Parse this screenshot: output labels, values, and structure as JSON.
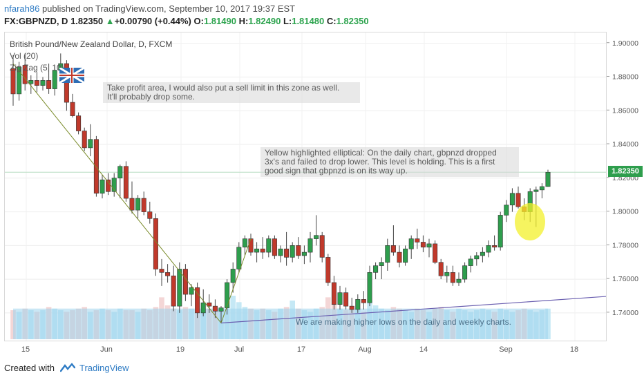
{
  "header": {
    "user": "nfarah86",
    "published": " published on TradingView.com, September 10, 2017 19:37 EST",
    "symbol": "FX:GBPNZD, D",
    "last": "1.82350",
    "change_arrow": "▲",
    "change": "+0.00790 (+0.44%)",
    "o_label": "O:",
    "o_val": "1.81490",
    "h_label": "H:",
    "h_val": "1.82490",
    "l_label": "L:",
    "l_val": "1.81480",
    "c_label": "C:",
    "c_val": "1.82350"
  },
  "legend": {
    "title": "British Pound/New Zealand Dollar, D, FXCM",
    "vol": "Vol (20)",
    "zigzag": "Zig Zag (5, 10)"
  },
  "notes": {
    "take_profit": "Take profit area, I would also put a sell limit in this zone as well.\nIt'll probably drop some.",
    "yellow": "Yellow highlighted elliptical: On the daily chart, gbpnzd dropped\n3x's and failed to drop lower.  This level is holding. This is a first\ngood sign that gbpnzd is on its way up.",
    "higher_lows": "We are making higher lows on the daily and weekly charts."
  },
  "price_label": "1.82350",
  "footer": {
    "created_with": "Created with",
    "brand": "TradingView"
  },
  "colors": {
    "up": "#2e9e4d",
    "down": "#c0392b",
    "zigzag": "#7a8b2a",
    "trend": "#6a5fb0",
    "volume": "#9fd3ec",
    "highlight": "#f3f02b"
  },
  "chart_data": {
    "type": "candlestick",
    "title": "British Pound/New Zealand Dollar, D, FXCM",
    "y_ticks": [
      "1.90000",
      "1.88000",
      "1.86000",
      "1.84000",
      "1.82000",
      "1.80000",
      "1.78000",
      "1.76000",
      "1.74000"
    ],
    "ylim": [
      1.726,
      1.904
    ],
    "x_ticks": [
      "15",
      "Jun",
      "19",
      "Jul",
      "17",
      "Aug",
      "14",
      "Sep",
      "18"
    ],
    "grid": true,
    "candles": [
      {
        "o": 1.885,
        "h": 1.893,
        "l": 1.863,
        "c": 1.87
      },
      {
        "o": 1.87,
        "h": 1.889,
        "l": 1.866,
        "c": 1.886
      },
      {
        "o": 1.887,
        "h": 1.894,
        "l": 1.872,
        "c": 1.876
      },
      {
        "o": 1.876,
        "h": 1.881,
        "l": 1.87,
        "c": 1.878
      },
      {
        "o": 1.878,
        "h": 1.883,
        "l": 1.871,
        "c": 1.875
      },
      {
        "o": 1.875,
        "h": 1.88,
        "l": 1.872,
        "c": 1.878
      },
      {
        "o": 1.878,
        "h": 1.888,
        "l": 1.87,
        "c": 1.873
      },
      {
        "o": 1.873,
        "h": 1.887,
        "l": 1.869,
        "c": 1.884
      },
      {
        "o": 1.884,
        "h": 1.894,
        "l": 1.881,
        "c": 1.888
      },
      {
        "o": 1.888,
        "h": 1.89,
        "l": 1.86,
        "c": 1.865
      },
      {
        "o": 1.865,
        "h": 1.87,
        "l": 1.856,
        "c": 1.857
      },
      {
        "o": 1.857,
        "h": 1.859,
        "l": 1.846,
        "c": 1.848
      },
      {
        "o": 1.848,
        "h": 1.85,
        "l": 1.836,
        "c": 1.838
      },
      {
        "o": 1.838,
        "h": 1.852,
        "l": 1.833,
        "c": 1.843
      },
      {
        "o": 1.843,
        "h": 1.845,
        "l": 1.809,
        "c": 1.811
      },
      {
        "o": 1.811,
        "h": 1.822,
        "l": 1.808,
        "c": 1.819
      },
      {
        "o": 1.819,
        "h": 1.823,
        "l": 1.81,
        "c": 1.812
      },
      {
        "o": 1.812,
        "h": 1.823,
        "l": 1.809,
        "c": 1.82
      },
      {
        "o": 1.82,
        "h": 1.828,
        "l": 1.808,
        "c": 1.827
      },
      {
        "o": 1.827,
        "h": 1.83,
        "l": 1.806,
        "c": 1.808
      },
      {
        "o": 1.808,
        "h": 1.818,
        "l": 1.799,
        "c": 1.801
      },
      {
        "o": 1.801,
        "h": 1.81,
        "l": 1.796,
        "c": 1.808
      },
      {
        "o": 1.808,
        "h": 1.812,
        "l": 1.798,
        "c": 1.8
      },
      {
        "o": 1.8,
        "h": 1.806,
        "l": 1.793,
        "c": 1.796
      },
      {
        "o": 1.796,
        "h": 1.799,
        "l": 1.762,
        "c": 1.766
      },
      {
        "o": 1.766,
        "h": 1.772,
        "l": 1.756,
        "c": 1.764
      },
      {
        "o": 1.764,
        "h": 1.769,
        "l": 1.758,
        "c": 1.762
      },
      {
        "o": 1.762,
        "h": 1.768,
        "l": 1.741,
        "c": 1.744
      },
      {
        "o": 1.744,
        "h": 1.77,
        "l": 1.74,
        "c": 1.766
      },
      {
        "o": 1.766,
        "h": 1.769,
        "l": 1.747,
        "c": 1.751
      },
      {
        "o": 1.751,
        "h": 1.757,
        "l": 1.744,
        "c": 1.755
      },
      {
        "o": 1.755,
        "h": 1.758,
        "l": 1.737,
        "c": 1.74
      },
      {
        "o": 1.74,
        "h": 1.754,
        "l": 1.738,
        "c": 1.746
      },
      {
        "o": 1.746,
        "h": 1.751,
        "l": 1.74,
        "c": 1.744
      },
      {
        "o": 1.744,
        "h": 1.748,
        "l": 1.737,
        "c": 1.741
      },
      {
        "o": 1.741,
        "h": 1.744,
        "l": 1.734,
        "c": 1.743
      },
      {
        "o": 1.743,
        "h": 1.76,
        "l": 1.739,
        "c": 1.758
      },
      {
        "o": 1.758,
        "h": 1.77,
        "l": 1.752,
        "c": 1.766
      },
      {
        "o": 1.766,
        "h": 1.782,
        "l": 1.764,
        "c": 1.779
      },
      {
        "o": 1.779,
        "h": 1.786,
        "l": 1.774,
        "c": 1.784
      },
      {
        "o": 1.784,
        "h": 1.787,
        "l": 1.774,
        "c": 1.776
      },
      {
        "o": 1.776,
        "h": 1.782,
        "l": 1.77,
        "c": 1.778
      },
      {
        "o": 1.778,
        "h": 1.785,
        "l": 1.772,
        "c": 1.776
      },
      {
        "o": 1.776,
        "h": 1.786,
        "l": 1.773,
        "c": 1.784
      },
      {
        "o": 1.784,
        "h": 1.786,
        "l": 1.772,
        "c": 1.774
      },
      {
        "o": 1.774,
        "h": 1.78,
        "l": 1.77,
        "c": 1.778
      },
      {
        "o": 1.778,
        "h": 1.788,
        "l": 1.768,
        "c": 1.773
      },
      {
        "o": 1.773,
        "h": 1.782,
        "l": 1.77,
        "c": 1.78
      },
      {
        "o": 1.78,
        "h": 1.785,
        "l": 1.772,
        "c": 1.774
      },
      {
        "o": 1.774,
        "h": 1.78,
        "l": 1.769,
        "c": 1.776
      },
      {
        "o": 1.776,
        "h": 1.788,
        "l": 1.77,
        "c": 1.784
      },
      {
        "o": 1.784,
        "h": 1.798,
        "l": 1.78,
        "c": 1.786
      },
      {
        "o": 1.786,
        "h": 1.788,
        "l": 1.77,
        "c": 1.773
      },
      {
        "o": 1.773,
        "h": 1.775,
        "l": 1.756,
        "c": 1.758
      },
      {
        "o": 1.758,
        "h": 1.762,
        "l": 1.742,
        "c": 1.745
      },
      {
        "o": 1.745,
        "h": 1.756,
        "l": 1.742,
        "c": 1.752
      },
      {
        "o": 1.752,
        "h": 1.755,
        "l": 1.742,
        "c": 1.744
      },
      {
        "o": 1.744,
        "h": 1.749,
        "l": 1.74,
        "c": 1.742
      },
      {
        "o": 1.742,
        "h": 1.751,
        "l": 1.74,
        "c": 1.748
      },
      {
        "o": 1.748,
        "h": 1.753,
        "l": 1.742,
        "c": 1.746
      },
      {
        "o": 1.746,
        "h": 1.768,
        "l": 1.744,
        "c": 1.764
      },
      {
        "o": 1.764,
        "h": 1.77,
        "l": 1.76,
        "c": 1.768
      },
      {
        "o": 1.768,
        "h": 1.773,
        "l": 1.76,
        "c": 1.77
      },
      {
        "o": 1.77,
        "h": 1.784,
        "l": 1.765,
        "c": 1.78
      },
      {
        "o": 1.78,
        "h": 1.792,
        "l": 1.774,
        "c": 1.776
      },
      {
        "o": 1.776,
        "h": 1.78,
        "l": 1.767,
        "c": 1.77
      },
      {
        "o": 1.77,
        "h": 1.78,
        "l": 1.768,
        "c": 1.778
      },
      {
        "o": 1.778,
        "h": 1.786,
        "l": 1.772,
        "c": 1.784
      },
      {
        "o": 1.784,
        "h": 1.79,
        "l": 1.778,
        "c": 1.782
      },
      {
        "o": 1.782,
        "h": 1.786,
        "l": 1.776,
        "c": 1.779
      },
      {
        "o": 1.779,
        "h": 1.784,
        "l": 1.773,
        "c": 1.781
      },
      {
        "o": 1.781,
        "h": 1.783,
        "l": 1.769,
        "c": 1.77
      },
      {
        "o": 1.77,
        "h": 1.772,
        "l": 1.76,
        "c": 1.762
      },
      {
        "o": 1.762,
        "h": 1.768,
        "l": 1.758,
        "c": 1.764
      },
      {
        "o": 1.764,
        "h": 1.768,
        "l": 1.756,
        "c": 1.758
      },
      {
        "o": 1.758,
        "h": 1.764,
        "l": 1.756,
        "c": 1.76
      },
      {
        "o": 1.76,
        "h": 1.77,
        "l": 1.758,
        "c": 1.768
      },
      {
        "o": 1.768,
        "h": 1.774,
        "l": 1.764,
        "c": 1.772
      },
      {
        "o": 1.772,
        "h": 1.776,
        "l": 1.768,
        "c": 1.774
      },
      {
        "o": 1.774,
        "h": 1.779,
        "l": 1.77,
        "c": 1.776
      },
      {
        "o": 1.776,
        "h": 1.783,
        "l": 1.773,
        "c": 1.78
      },
      {
        "o": 1.78,
        "h": 1.786,
        "l": 1.777,
        "c": 1.779
      },
      {
        "o": 1.779,
        "h": 1.8,
        "l": 1.777,
        "c": 1.798
      },
      {
        "o": 1.798,
        "h": 1.807,
        "l": 1.794,
        "c": 1.804
      },
      {
        "o": 1.804,
        "h": 1.814,
        "l": 1.8,
        "c": 1.811
      },
      {
        "o": 1.811,
        "h": 1.815,
        "l": 1.802,
        "c": 1.803
      },
      {
        "o": 1.803,
        "h": 1.808,
        "l": 1.795,
        "c": 1.8
      },
      {
        "o": 1.8,
        "h": 1.814,
        "l": 1.794,
        "c": 1.812
      },
      {
        "o": 1.812,
        "h": 1.815,
        "l": 1.791,
        "c": 1.813
      },
      {
        "o": 1.813,
        "h": 1.817,
        "l": 1.808,
        "c": 1.815
      },
      {
        "o": 1.815,
        "h": 1.825,
        "l": 1.8148,
        "c": 1.8235
      }
    ],
    "volume": [
      18,
      17,
      19,
      18,
      17,
      18,
      20,
      19,
      18,
      17,
      18,
      19,
      20,
      17,
      18,
      19,
      18,
      17,
      19,
      18,
      18,
      17,
      19,
      18,
      20,
      26,
      21,
      19,
      18,
      20,
      19,
      18,
      17,
      19,
      20,
      18,
      21,
      27,
      23,
      20,
      19,
      18,
      19,
      18,
      17,
      19,
      20,
      24,
      19,
      18,
      17,
      19,
      20,
      26,
      22,
      19,
      18,
      19,
      18,
      17,
      24,
      21,
      19,
      18,
      20,
      19,
      18,
      17,
      19,
      18,
      17,
      19,
      20,
      18,
      17,
      19,
      18,
      17,
      18,
      19,
      18,
      17,
      19,
      18,
      17,
      18,
      19,
      18,
      17,
      18,
      19
    ],
    "zigzag": [
      [
        0,
        1.888
      ],
      [
        35,
        1.734
      ],
      [
        40,
        1.784
      ]
    ],
    "trendline": [
      [
        35,
        1.734
      ],
      [
        150,
        1.762
      ]
    ]
  }
}
